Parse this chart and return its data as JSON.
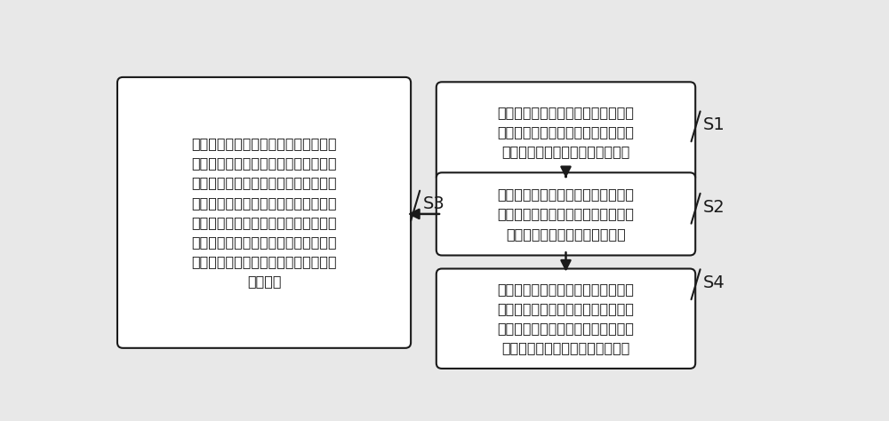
{
  "bg_color": "#e8e8e8",
  "box_fill": "#ffffff",
  "box_edge": "#1a1a1a",
  "arrow_color": "#1a1a1a",
  "text_color": "#1a1a1a",
  "font_size": 11.5,
  "label_font_size": 14,
  "s1_text": "调用孪生模型模块构建区域电网数字\n孪生模型，区域电网数字孪生模型包\n括区域电网的拓扑模型和参数模型",
  "s2_text": "调用仿真分析模型基于区域电网的拓\n扑模型和参数模型进行稳态仿真计算\n和暂态仿真计算，输出仿真结果",
  "s4_text": "调用预演决策模块基于区域电网的拓\n扑模型和参数模型，以及仿真结果，\n进行边缘分析决策，从决策库中查找\n并输出针对于仿真结果的控制策略",
  "s3_text": "调用状态估计模块根据区域电网的拓扑\n模型、实时采集的区域电网的节点电压\n和仿真结果，对区域电网的拓扑模型和\n参数模型进行周期性的状态估计，根据\n状态估计结果对区域电网的拓扑模型和\n参数模型进行更新，将区域电网的拓扑\n模型和参数模型的更新结果反馈给孪生\n模型模块",
  "s1_label": "S1",
  "s2_label": "S2",
  "s3_label": "S3",
  "s4_label": "S4"
}
